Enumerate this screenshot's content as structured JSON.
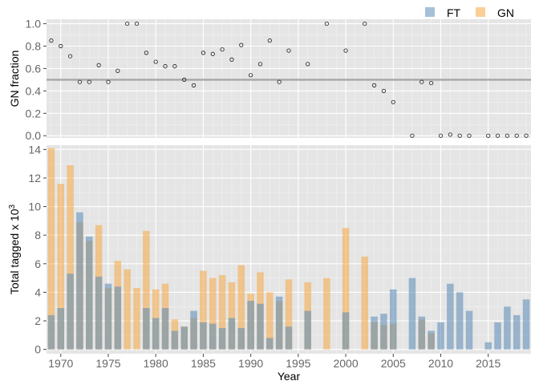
{
  "chart_data": {
    "type": "bar",
    "legend": {
      "position": "top-right",
      "items": [
        {
          "key": "FT",
          "label": "FT",
          "color": "#5f8db8"
        },
        {
          "key": "GN",
          "label": "GN",
          "color": "#f5a742"
        }
      ]
    },
    "xlabel": "Year",
    "xlim": [
      1968.5,
      2019.5
    ],
    "xticks": [
      1970,
      1975,
      1980,
      1985,
      1990,
      1995,
      2000,
      2005,
      2010,
      2015
    ],
    "panels": [
      {
        "id": "fraction",
        "type": "scatter",
        "ylabel": "GN fraction",
        "ylim": [
          -0.02,
          1.04
        ],
        "yticks": [
          "0.0",
          "0.2",
          "0.4",
          "0.6",
          "0.8",
          "1.0"
        ],
        "reference_line": 0.5,
        "points": [
          {
            "x": 1969,
            "y": 0.85
          },
          {
            "x": 1970,
            "y": 0.8
          },
          {
            "x": 1971,
            "y": 0.71
          },
          {
            "x": 1972,
            "y": 0.48
          },
          {
            "x": 1973,
            "y": 0.48
          },
          {
            "x": 1974,
            "y": 0.63
          },
          {
            "x": 1975,
            "y": 0.48
          },
          {
            "x": 1976,
            "y": 0.58
          },
          {
            "x": 1977,
            "y": 1.0
          },
          {
            "x": 1978,
            "y": 1.0
          },
          {
            "x": 1979,
            "y": 0.74
          },
          {
            "x": 1980,
            "y": 0.66
          },
          {
            "x": 1981,
            "y": 0.62
          },
          {
            "x": 1982,
            "y": 0.62
          },
          {
            "x": 1983,
            "y": 0.5
          },
          {
            "x": 1984,
            "y": 0.45
          },
          {
            "x": 1985,
            "y": 0.74
          },
          {
            "x": 1986,
            "y": 0.73
          },
          {
            "x": 1987,
            "y": 0.77
          },
          {
            "x": 1988,
            "y": 0.68
          },
          {
            "x": 1989,
            "y": 0.81
          },
          {
            "x": 1990,
            "y": 0.54
          },
          {
            "x": 1991,
            "y": 0.64
          },
          {
            "x": 1992,
            "y": 0.85
          },
          {
            "x": 1993,
            "y": 0.48
          },
          {
            "x": 1994,
            "y": 0.76
          },
          {
            "x": 1996,
            "y": 0.64
          },
          {
            "x": 1998,
            "y": 1.0
          },
          {
            "x": 2000,
            "y": 0.76
          },
          {
            "x": 2002,
            "y": 1.0
          },
          {
            "x": 2003,
            "y": 0.45
          },
          {
            "x": 2004,
            "y": 0.4
          },
          {
            "x": 2005,
            "y": 0.3
          },
          {
            "x": 2007,
            "y": 0.0
          },
          {
            "x": 2008,
            "y": 0.48
          },
          {
            "x": 2009,
            "y": 0.47
          },
          {
            "x": 2010,
            "y": 0.0
          },
          {
            "x": 2011,
            "y": 0.01
          },
          {
            "x": 2012,
            "y": 0.0
          },
          {
            "x": 2013,
            "y": 0.0
          },
          {
            "x": 2015,
            "y": 0.0
          },
          {
            "x": 2016,
            "y": 0.0
          },
          {
            "x": 2017,
            "y": 0.0
          },
          {
            "x": 2018,
            "y": 0.0
          },
          {
            "x": 2019,
            "y": 0.0
          }
        ]
      },
      {
        "id": "totals",
        "type": "bar",
        "ylabel": "Total tagged x 10",
        "ylabel_superscript": "3",
        "ylim": [
          -0.3,
          14.3
        ],
        "yticks": [
          "0",
          "2",
          "4",
          "6",
          "8",
          "10",
          "12",
          "14"
        ],
        "bar_mode": "overlay",
        "series": [
          {
            "name": "FT",
            "points": [
              {
                "x": 1969,
                "y": 2.4
              },
              {
                "x": 1970,
                "y": 2.9
              },
              {
                "x": 1971,
                "y": 5.3
              },
              {
                "x": 1972,
                "y": 9.6
              },
              {
                "x": 1973,
                "y": 7.9
              },
              {
                "x": 1974,
                "y": 5.1
              },
              {
                "x": 1975,
                "y": 4.6
              },
              {
                "x": 1976,
                "y": 4.4
              },
              {
                "x": 1979,
                "y": 2.9
              },
              {
                "x": 1980,
                "y": 2.2
              },
              {
                "x": 1981,
                "y": 2.9
              },
              {
                "x": 1982,
                "y": 1.3
              },
              {
                "x": 1983,
                "y": 1.6
              },
              {
                "x": 1984,
                "y": 2.7
              },
              {
                "x": 1985,
                "y": 1.9
              },
              {
                "x": 1986,
                "y": 1.8
              },
              {
                "x": 1987,
                "y": 1.5
              },
              {
                "x": 1988,
                "y": 2.2
              },
              {
                "x": 1989,
                "y": 1.5
              },
              {
                "x": 1990,
                "y": 3.4
              },
              {
                "x": 1991,
                "y": 3.2
              },
              {
                "x": 1992,
                "y": 0.8
              },
              {
                "x": 1993,
                "y": 3.7
              },
              {
                "x": 1994,
                "y": 1.6
              },
              {
                "x": 1996,
                "y": 2.7
              },
              {
                "x": 2000,
                "y": 2.6
              },
              {
                "x": 2003,
                "y": 2.3
              },
              {
                "x": 2004,
                "y": 2.5
              },
              {
                "x": 2005,
                "y": 4.2
              },
              {
                "x": 2007,
                "y": 5.0
              },
              {
                "x": 2008,
                "y": 2.3
              },
              {
                "x": 2009,
                "y": 1.3
              },
              {
                "x": 2010,
                "y": 1.9
              },
              {
                "x": 2011,
                "y": 4.6
              },
              {
                "x": 2012,
                "y": 4.0
              },
              {
                "x": 2013,
                "y": 2.7
              },
              {
                "x": 2015,
                "y": 0.5
              },
              {
                "x": 2016,
                "y": 1.9
              },
              {
                "x": 2017,
                "y": 3.0
              },
              {
                "x": 2018,
                "y": 2.4
              },
              {
                "x": 2019,
                "y": 3.5
              }
            ]
          },
          {
            "name": "GN",
            "points": [
              {
                "x": 1969,
                "y": 14.1
              },
              {
                "x": 1970,
                "y": 11.6
              },
              {
                "x": 1971,
                "y": 12.9
              },
              {
                "x": 1972,
                "y": 8.9
              },
              {
                "x": 1973,
                "y": 7.6
              },
              {
                "x": 1974,
                "y": 8.7
              },
              {
                "x": 1975,
                "y": 4.3
              },
              {
                "x": 1976,
                "y": 6.2
              },
              {
                "x": 1977,
                "y": 5.6
              },
              {
                "x": 1978,
                "y": 4.3
              },
              {
                "x": 1979,
                "y": 8.3
              },
              {
                "x": 1980,
                "y": 4.2
              },
              {
                "x": 1981,
                "y": 4.6
              },
              {
                "x": 1982,
                "y": 2.1
              },
              {
                "x": 1983,
                "y": 1.6
              },
              {
                "x": 1984,
                "y": 2.2
              },
              {
                "x": 1985,
                "y": 5.5
              },
              {
                "x": 1986,
                "y": 5.0
              },
              {
                "x": 1987,
                "y": 5.2
              },
              {
                "x": 1988,
                "y": 4.7
              },
              {
                "x": 1989,
                "y": 5.9
              },
              {
                "x": 1990,
                "y": 3.9
              },
              {
                "x": 1991,
                "y": 5.4
              },
              {
                "x": 1992,
                "y": 4.0
              },
              {
                "x": 1993,
                "y": 3.4
              },
              {
                "x": 1994,
                "y": 4.9
              },
              {
                "x": 1996,
                "y": 4.7
              },
              {
                "x": 1998,
                "y": 5.0
              },
              {
                "x": 2000,
                "y": 8.5
              },
              {
                "x": 2002,
                "y": 6.5
              },
              {
                "x": 2003,
                "y": 1.9
              },
              {
                "x": 2004,
                "y": 1.7
              },
              {
                "x": 2005,
                "y": 1.8
              },
              {
                "x": 2008,
                "y": 2.1
              },
              {
                "x": 2009,
                "y": 1.1
              }
            ]
          }
        ]
      }
    ]
  }
}
